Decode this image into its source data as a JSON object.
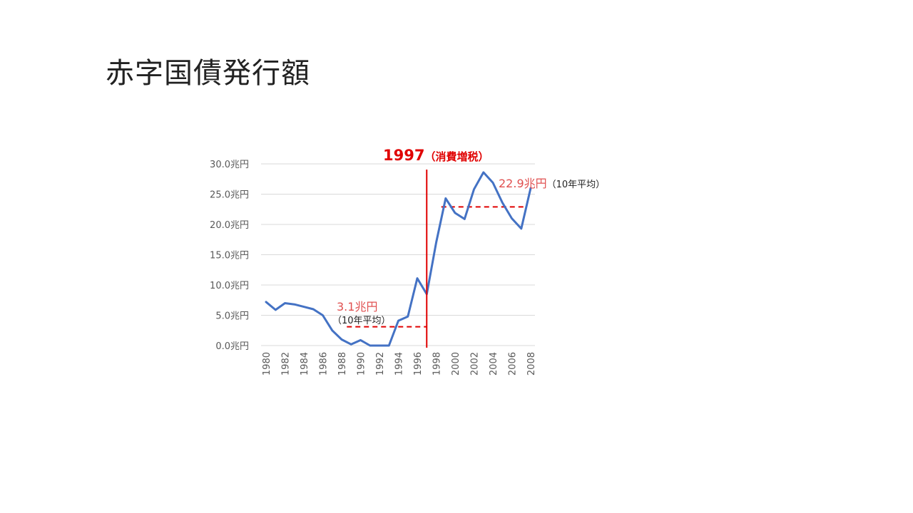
{
  "slide": {
    "title": "赤字国債発行額"
  },
  "chart_data": {
    "type": "line",
    "title": "",
    "xlabel": "",
    "ylabel": "",
    "ylim": [
      0,
      30
    ],
    "y_ticks": [
      "0.0兆円",
      "5.0兆円",
      "10.0兆円",
      "15.0兆円",
      "20.0兆円",
      "25.0兆円",
      "30.0兆円"
    ],
    "x_tick_labels": [
      "1980",
      "1982",
      "1984",
      "1986",
      "1988",
      "1990",
      "1992",
      "1994",
      "1996",
      "1998",
      "2000",
      "2002",
      "2004",
      "2006",
      "2008"
    ],
    "grid": true,
    "x": [
      1980,
      1981,
      1982,
      1983,
      1984,
      1985,
      1986,
      1987,
      1988,
      1989,
      1990,
      1991,
      1992,
      1993,
      1994,
      1995,
      1996,
      1997,
      1998,
      1999,
      2000,
      2001,
      2002,
      2003,
      2004,
      2005,
      2006,
      2007,
      2008
    ],
    "values": [
      7.2,
      5.9,
      7.0,
      6.8,
      6.4,
      6.0,
      5.0,
      2.5,
      1.0,
      0.2,
      0.9,
      0,
      0,
      0,
      4.1,
      4.8,
      11.1,
      8.5,
      17.0,
      24.3,
      21.9,
      20.9,
      25.8,
      28.6,
      26.9,
      23.6,
      21.0,
      19.3,
      26.0
    ],
    "series_color": "#4472c4",
    "annotations": {
      "event": {
        "year": 1997,
        "label": "1997",
        "sub": "（消費増税）",
        "color": "#e00000"
      },
      "avg_before": {
        "value": 3.1,
        "label": "3.1兆円",
        "note": "（10年平均）",
        "from_year": 1989,
        "to_year": 1997
      },
      "avg_after": {
        "value": 22.9,
        "label": "22.9兆円",
        "note": "（10年平均）",
        "from_year": 1999,
        "to_year": 2007.5
      }
    }
  }
}
